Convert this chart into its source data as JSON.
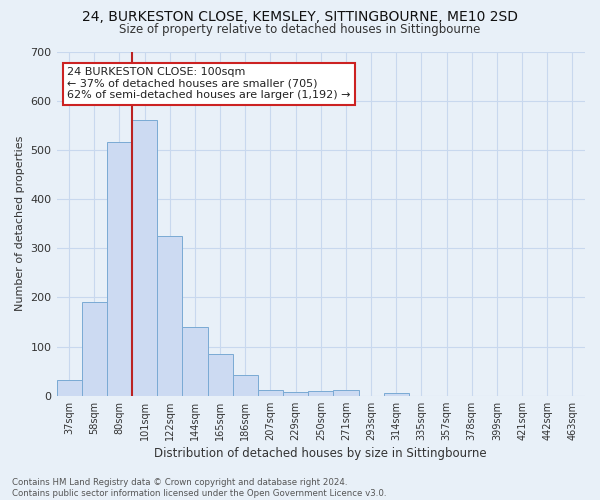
{
  "title1": "24, BURKESTON CLOSE, KEMSLEY, SITTINGBOURNE, ME10 2SD",
  "title2": "Size of property relative to detached houses in Sittingbourne",
  "xlabel": "Distribution of detached houses by size in Sittingbourne",
  "ylabel": "Number of detached properties",
  "bar_labels": [
    "37sqm",
    "58sqm",
    "80sqm",
    "101sqm",
    "122sqm",
    "144sqm",
    "165sqm",
    "186sqm",
    "207sqm",
    "229sqm",
    "250sqm",
    "271sqm",
    "293sqm",
    "314sqm",
    "335sqm",
    "357sqm",
    "378sqm",
    "399sqm",
    "421sqm",
    "442sqm",
    "463sqm"
  ],
  "bar_values": [
    32,
    190,
    515,
    560,
    325,
    140,
    86,
    42,
    11,
    8,
    9,
    11,
    0,
    5,
    0,
    0,
    0,
    0,
    0,
    0,
    0
  ],
  "bar_color": "#ccdaf2",
  "bar_edge_color": "#7aaad4",
  "grid_color": "#c8d8ee",
  "background_color": "#e8f0f8",
  "vline_color": "#bb2222",
  "annotation_text": "24 BURKESTON CLOSE: 100sqm\n← 37% of detached houses are smaller (705)\n62% of semi-detached houses are larger (1,192) →",
  "annotation_box_color": "#ffffff",
  "annotation_box_edge_color": "#cc2222",
  "footnote": "Contains HM Land Registry data © Crown copyright and database right 2024.\nContains public sector information licensed under the Open Government Licence v3.0.",
  "ylim": [
    0,
    700
  ],
  "yticks": [
    0,
    100,
    200,
    300,
    400,
    500,
    600,
    700
  ],
  "figsize": [
    6.0,
    5.0
  ],
  "dpi": 100
}
